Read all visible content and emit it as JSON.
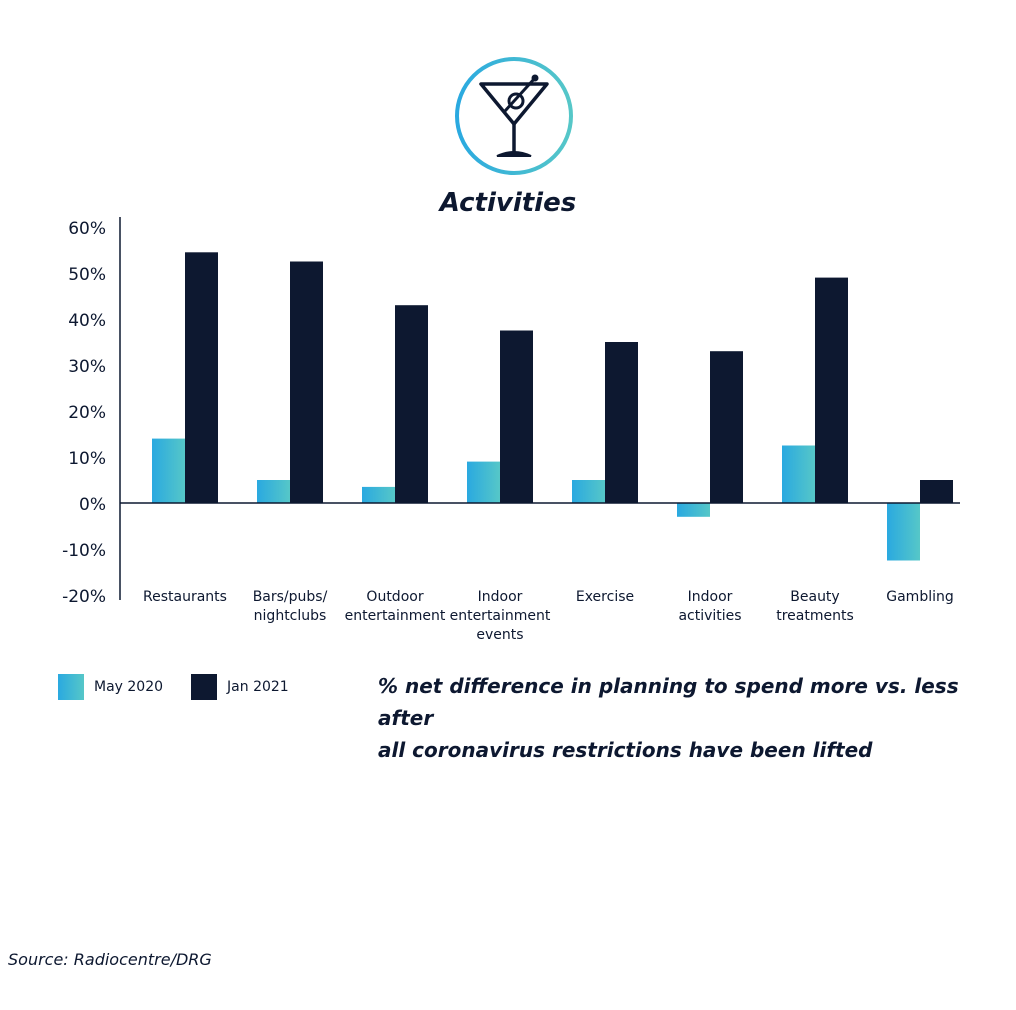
{
  "title": "Activities",
  "caption_line1": "% net difference in planning to spend more vs. less after",
  "caption_line2": "all coronavirus restrictions have been lifted",
  "source": "Source: Radiocentre/DRG",
  "icon": "martini-glass-icon",
  "colors": {
    "dark": "#0d1830",
    "teal_start": "#2aa9e0",
    "teal_end": "#56c7c8",
    "icon_ring_start": "#2aa9e0",
    "icon_ring_end": "#56c7c8"
  },
  "chart_data": {
    "type": "bar",
    "categories": [
      [
        "Restaurants"
      ],
      [
        "Bars/pubs/",
        "nightclubs"
      ],
      [
        "Outdoor",
        "entertainment"
      ],
      [
        "Indoor",
        "entertainment",
        "events"
      ],
      [
        "Exercise"
      ],
      [
        "Indoor",
        "activities"
      ],
      [
        "Beauty",
        "treatments"
      ],
      [
        "Gambling"
      ]
    ],
    "series": [
      {
        "name": "May 2020",
        "values": [
          14,
          5,
          3.5,
          9,
          5,
          -3,
          12.5,
          -12.5
        ]
      },
      {
        "name": "Jan 2021",
        "values": [
          54.5,
          52.5,
          43,
          37.5,
          35,
          33,
          49,
          5
        ]
      }
    ],
    "ylim": [
      -20,
      60
    ],
    "yticks": [
      "60%",
      "50%",
      "40%",
      "30%",
      "20%",
      "10%",
      "0%",
      "-10%",
      "-20%"
    ],
    "ytick_values": [
      60,
      50,
      40,
      30,
      20,
      10,
      0,
      -10,
      -20
    ],
    "grid": false,
    "legend_position": "bottom-left"
  }
}
